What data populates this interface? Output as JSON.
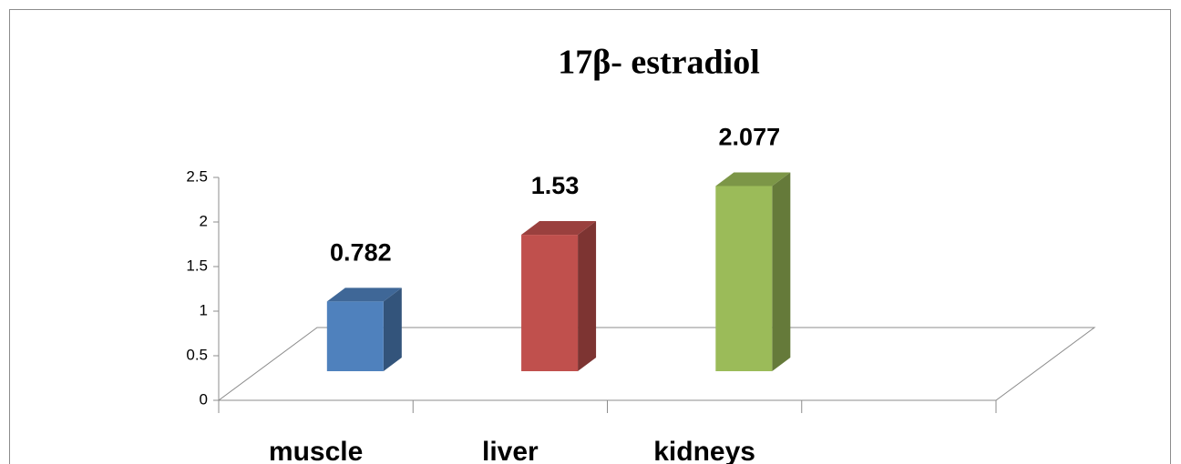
{
  "chart_data": {
    "type": "bar3d",
    "title": "17β- estradiol",
    "categories": [
      "muscle",
      "liver",
      "kidneys",
      null
    ],
    "values": [
      0.782,
      1.53,
      2.077,
      null
    ],
    "colors": [
      "#4f81bd",
      "#c0504d",
      "#9bbb59",
      null
    ],
    "ylim": [
      0,
      2.5
    ],
    "yticks": [
      0,
      0.5,
      1,
      1.5,
      2,
      2.5
    ],
    "grid": false
  }
}
